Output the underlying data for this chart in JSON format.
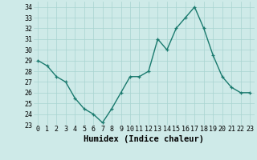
{
  "x": [
    0,
    1,
    2,
    3,
    4,
    5,
    6,
    7,
    8,
    9,
    10,
    11,
    12,
    13,
    14,
    15,
    16,
    17,
    18,
    19,
    20,
    21,
    22,
    23
  ],
  "y": [
    29,
    28.5,
    27.5,
    27,
    25.5,
    24.5,
    24,
    23.2,
    24.5,
    26,
    27.5,
    27.5,
    28,
    31,
    30,
    32,
    33,
    34,
    32,
    29.5,
    27.5,
    26.5,
    26,
    26
  ],
  "line_color": "#1a7a6e",
  "marker": "+",
  "marker_size": 3,
  "bg_color": "#ceeae8",
  "grid_color": "#a8d4d0",
  "xlabel": "Humidex (Indice chaleur)",
  "ylim": [
    23,
    34.5
  ],
  "xlim": [
    -0.5,
    23.5
  ],
  "yticks": [
    23,
    24,
    25,
    26,
    27,
    28,
    29,
    30,
    31,
    32,
    33,
    34
  ],
  "xticks": [
    0,
    1,
    2,
    3,
    4,
    5,
    6,
    7,
    8,
    9,
    10,
    11,
    12,
    13,
    14,
    15,
    16,
    17,
    18,
    19,
    20,
    21,
    22,
    23
  ],
  "tick_label_fontsize": 6,
  "xlabel_fontsize": 7.5,
  "line_width": 1.0
}
